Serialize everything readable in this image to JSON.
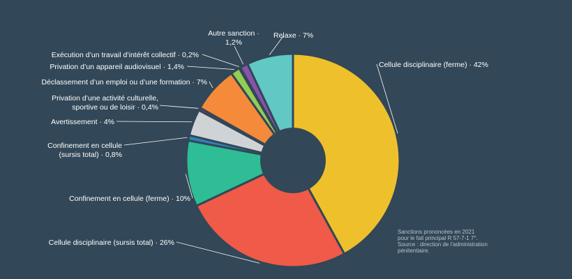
{
  "chart_data": {
    "type": "pie",
    "variant": "donut",
    "title": "",
    "slices": [
      {
        "label": "Cellule disciplinaire (ferme) · 42%",
        "value": 42,
        "color": "#eec02c"
      },
      {
        "label": "Cellule disciplinaire (sursis total) · 26%",
        "value": 26,
        "color": "#f05a48"
      },
      {
        "label": "Confinement en cellule (ferme) · 10%",
        "value": 10,
        "color": "#2ebd94"
      },
      {
        "label": "Confinement en cellule (sursis total) · 0,8%",
        "value": 0.8,
        "color": "#2f82b8"
      },
      {
        "label": "Avertissement · 4%",
        "value": 4,
        "color": "#d0d3d6"
      },
      {
        "label": "Privation d’une activité culturelle, sportive ou de loisir · 0,4%",
        "value": 0.4,
        "color": "#c0247a"
      },
      {
        "label": "Déclassement d’un emploi ou d’une formation · 7%",
        "value": 7,
        "color": "#f58a3a"
      },
      {
        "label": "Privation d’un appareil audiovisuel · 1,4%",
        "value": 1.4,
        "color": "#94cd55"
      },
      {
        "label": "Exécution d’un travail d’intérêt collectif · 0,2%",
        "value": 0.2,
        "color": "#f4ea56"
      },
      {
        "label": "Autre sanction · 1,2%",
        "value": 1.2,
        "color": "#8a52a8"
      },
      {
        "label": "Relaxe · 7%",
        "value": 7,
        "color": "#62c8c4"
      }
    ],
    "source_note": [
      "Sanctions prononcées en 2021",
      "pour le fait principal R 57-7-1 7°.",
      "Source : direction de l’administration",
      "pénitentiaire."
    ]
  }
}
